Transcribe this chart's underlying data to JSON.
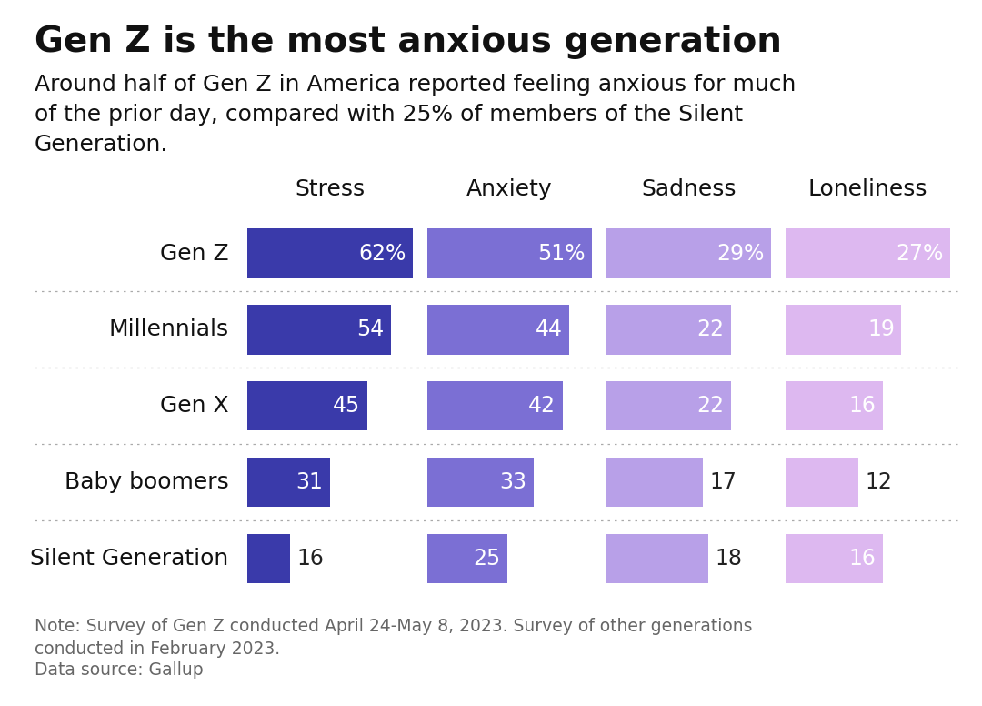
{
  "title": "Gen Z is the most anxious generation",
  "subtitle": "Around half of Gen Z in America reported feeling anxious for much\nof the prior day, compared with 25% of members of the Silent\nGeneration.",
  "note": "Note: Survey of Gen Z conducted April 24-May 8, 2023. Survey of other generations\nconducted in February 2023.",
  "source": "Data source: Gallup",
  "categories": [
    "Stress",
    "Anxiety",
    "Sadness",
    "Loneliness"
  ],
  "generations": [
    "Gen Z",
    "Millennials",
    "Gen X",
    "Baby boomers",
    "Silent Generation"
  ],
  "data": {
    "Gen Z": [
      62,
      51,
      29,
      27
    ],
    "Millennials": [
      54,
      44,
      22,
      19
    ],
    "Gen X": [
      45,
      42,
      22,
      16
    ],
    "Baby boomers": [
      31,
      33,
      17,
      12
    ],
    "Silent Generation": [
      16,
      25,
      18,
      16
    ]
  },
  "col_max": [
    62,
    51,
    29,
    27
  ],
  "label_suffix": {
    "Gen Z": "%",
    "Millennials": "",
    "Gen X": "",
    "Baby boomers": "",
    "Silent Generation": ""
  },
  "bar_colors_by_category": {
    "Stress": "#3a3aaa",
    "Anxiety": "#7b6fd4",
    "Sadness": "#b8a0e8",
    "Loneliness": "#ddb8f0"
  },
  "text_color_inside": "#ffffff",
  "text_color_outside": "#222222",
  "text_threshold": {
    "Stress": 22,
    "Anxiety": 22,
    "Sadness": 20,
    "Loneliness": 14
  },
  "background_color": "#ffffff",
  "title_fontsize": 28,
  "subtitle_fontsize": 18,
  "note_fontsize": 13.5,
  "value_fontsize": 17,
  "gen_label_fontsize": 18,
  "col_header_fontsize": 18
}
